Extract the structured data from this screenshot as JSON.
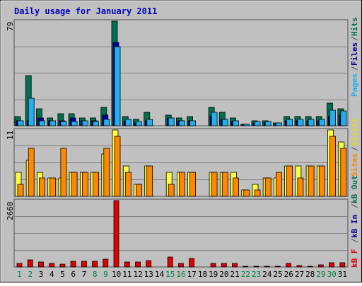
{
  "title": "Daily usage for January 2011",
  "colors": {
    "background": "#C0C0C0",
    "frame": "#505050",
    "title": "#0000C0",
    "hits": "#007050",
    "files": "#0000A0",
    "pages": "#20B0F0",
    "visits": "#FFFF40",
    "sites": "#FF8800",
    "kb": "#E00000",
    "weekday": "#000000",
    "weekend": "#008040",
    "grid": "#808080"
  },
  "chart_data": [
    {
      "type": "bar",
      "panel": "hits-files-pages",
      "ymax_label": "79",
      "ylim": [
        0,
        79
      ],
      "categories": [
        "1",
        "2",
        "3",
        "4",
        "5",
        "6",
        "7",
        "8",
        "9",
        "10",
        "11",
        "12",
        "13",
        "14",
        "15",
        "16",
        "17",
        "18",
        "19",
        "20",
        "21",
        "22",
        "23",
        "24",
        "25",
        "26",
        "27",
        "28",
        "29",
        "30",
        "31"
      ],
      "series": [
        {
          "name": "Hits",
          "values": [
            7,
            38,
            13,
            6,
            9,
            9,
            6,
            6,
            14,
            79,
            7,
            5,
            10,
            0,
            8,
            6,
            7,
            0,
            14,
            10,
            6,
            1,
            4,
            4,
            2,
            7,
            7,
            7,
            7,
            17,
            13
          ]
        },
        {
          "name": "Files",
          "values": [
            4,
            4,
            6,
            4,
            4,
            6,
            4,
            4,
            8,
            63,
            3,
            2,
            4,
            0,
            6,
            4,
            4,
            0,
            7,
            5,
            3,
            1,
            2,
            2,
            1,
            4,
            4,
            4,
            4,
            7,
            8
          ]
        },
        {
          "name": "Pages",
          "values": [
            4,
            21,
            4,
            4,
            3,
            3,
            4,
            3,
            5,
            60,
            5,
            3,
            5,
            0,
            6,
            4,
            4,
            0,
            10,
            5,
            4,
            1,
            3,
            3,
            2,
            5,
            5,
            5,
            5,
            12,
            11
          ]
        }
      ],
      "y_axis_labels": [
        "Pages",
        "Files",
        "Hits"
      ]
    },
    {
      "type": "bar",
      "panel": "visits-sites",
      "ymax_label": "11",
      "ylim": [
        0,
        11
      ],
      "categories": [
        "1",
        "2",
        "3",
        "4",
        "5",
        "6",
        "7",
        "8",
        "9",
        "10",
        "11",
        "12",
        "13",
        "14",
        "15",
        "16",
        "17",
        "18",
        "19",
        "20",
        "21",
        "22",
        "23",
        "24",
        "25",
        "26",
        "27",
        "28",
        "29",
        "30",
        "31"
      ],
      "series": [
        {
          "name": "Visits",
          "values": [
            4,
            6,
            4,
            3,
            3,
            4,
            4,
            4,
            7,
            11,
            5,
            2,
            5,
            0,
            4,
            4,
            4,
            0,
            4,
            4,
            4,
            1,
            2,
            3,
            3,
            5,
            5,
            5,
            5,
            11,
            9
          ]
        },
        {
          "name": "Sites",
          "values": [
            2,
            8,
            3,
            3,
            8,
            4,
            4,
            4,
            8,
            10,
            4,
            2,
            5,
            0,
            2,
            4,
            4,
            0,
            4,
            4,
            3,
            1,
            1,
            3,
            4,
            5,
            3,
            5,
            5,
            10,
            8
          ]
        }
      ],
      "y_axis_labels": [
        "Sites",
        "Visits"
      ]
    },
    {
      "type": "bar",
      "panel": "kbytes",
      "ymax_label": "2660",
      "ylim": [
        0,
        2660
      ],
      "categories": [
        "1",
        "2",
        "3",
        "4",
        "5",
        "6",
        "7",
        "8",
        "9",
        "10",
        "11",
        "12",
        "13",
        "14",
        "15",
        "16",
        "17",
        "18",
        "19",
        "20",
        "21",
        "22",
        "23",
        "24",
        "25",
        "26",
        "27",
        "28",
        "29",
        "30",
        "31"
      ],
      "series": [
        {
          "name": "kB F",
          "values": [
            150,
            280,
            200,
            150,
            110,
            230,
            220,
            230,
            300,
            2660,
            200,
            200,
            260,
            0,
            410,
            130,
            330,
            0,
            140,
            140,
            130,
            10,
            40,
            40,
            20,
            140,
            50,
            40,
            80,
            170,
            180
          ]
        }
      ],
      "y_axis_labels": [
        "kB F",
        "kB In",
        "kB Out"
      ]
    }
  ]
}
